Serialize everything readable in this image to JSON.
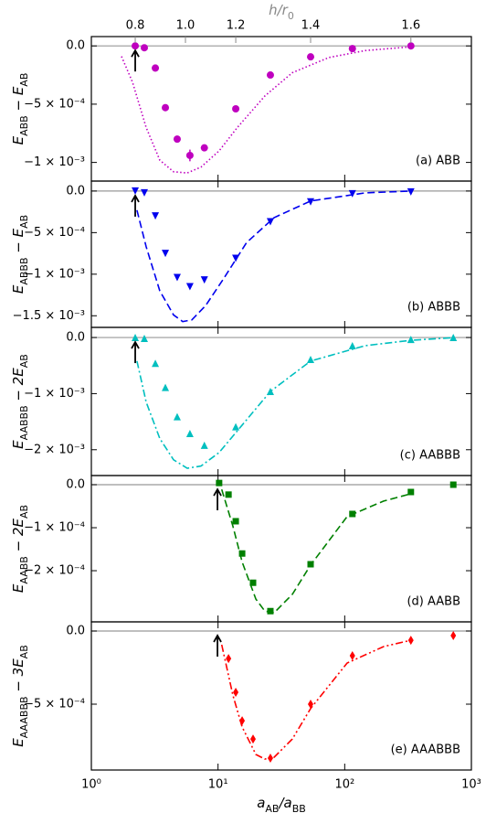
{
  "chart_data": {
    "type": "scatter",
    "xscale": "log",
    "xlabel": [
      "a",
      "AB",
      "/a",
      "BB"
    ],
    "xlim": [
      1,
      1000
    ],
    "xticks": [
      {
        "value": 1,
        "label": "10⁰"
      },
      {
        "value": 10,
        "label": "10¹"
      },
      {
        "value": 100,
        "label": "10²"
      },
      {
        "value": 1000,
        "label": "10³"
      }
    ],
    "x2label": [
      "h/r",
      "0"
    ],
    "x2ticks": [
      0.8,
      {
        "value": 1,
        "label": "1.0"
      },
      1.2,
      1.4,
      1.6
    ],
    "x2_at_x": [
      2.22,
      5.53,
      13.8,
      53.8,
      333
    ],
    "panels": [
      {
        "label": "(a) ABB",
        "color": "#bf00bf",
        "marker": "circle",
        "linestyle": "dotted",
        "ylabel": [
          "E",
          "ABB",
          " − E",
          "AB"
        ],
        "ylim": [
          -0.00116,
          8e-05
        ],
        "yticks": [
          {
            "value": 0,
            "label": "0.0"
          },
          {
            "value": -0.0005,
            "label": "−5 × 10⁻⁴"
          },
          {
            "value": -0.001,
            "label": "−1 × 10⁻³"
          }
        ],
        "x": [
          2.22,
          2.62,
          3.2,
          3.84,
          4.76,
          6.0,
          7.8,
          13.8,
          25.9,
          53.8,
          115,
          333
        ],
        "values": [
          0,
          -1.6e-05,
          -0.00019,
          -0.00053,
          -0.0008,
          -0.00094,
          -0.000875,
          -0.00054,
          -0.00025,
          -9.4e-05,
          -2.3e-05,
          0
        ],
        "errors": [
          0,
          0,
          3e-05,
          3e-05,
          3e-05,
          5e-05,
          2e-05,
          1e-05,
          1e-05,
          1e-05,
          0,
          0
        ],
        "curve_x": [
          1.73,
          2.11,
          2.71,
          3.47,
          4.46,
          5.72,
          7.33,
          10.2,
          14.2,
          23.4,
          38.6,
          75,
          145,
          333
        ],
        "curve_y": [
          -9e-05,
          -0.00031,
          -0.0007,
          -0.00098,
          -0.00108,
          -0.00109,
          -0.00104,
          -0.0009,
          -0.0007,
          -0.00043,
          -0.00023,
          -0.0001,
          -4e-05,
          -8e-06
        ],
        "arrow_x": 2.22
      },
      {
        "label": "(b) ABBB",
        "color": "#0000ee",
        "marker": "triangle-down",
        "linestyle": "dashed",
        "ylabel": [
          "E",
          "ABBB",
          " − E",
          "AB"
        ],
        "ylim": [
          -0.00164,
          0.00012
        ],
        "yticks": [
          {
            "value": 0,
            "label": "0.0"
          },
          {
            "value": -0.0005,
            "label": "−5 × 10⁻⁴"
          },
          {
            "value": -0.001,
            "label": "−1 × 10⁻³"
          },
          {
            "value": -0.0015,
            "label": "−1.5 × 10⁻³"
          }
        ],
        "x": [
          2.22,
          2.62,
          3.2,
          3.84,
          4.76,
          6.0,
          7.8,
          13.8,
          25.9,
          53.8,
          115,
          333
        ],
        "values": [
          0,
          -2.2e-05,
          -0.0003,
          -0.00075,
          -0.00104,
          -0.00115,
          -0.00107,
          -0.00081,
          -0.00037,
          -0.00013,
          -3.3e-05,
          -1.1e-05
        ],
        "curve_x": [
          2.29,
          2.71,
          3.47,
          4.46,
          5.26,
          6.21,
          7.96,
          11.1,
          16.8,
          27.7,
          53.8,
          145,
          333
        ],
        "curve_y": [
          -0.00023,
          -0.00067,
          -0.0012,
          -0.00149,
          -0.00157,
          -0.00155,
          -0.00138,
          -0.00105,
          -0.00062,
          -0.00032,
          -0.00012,
          -2.2e-05,
          0
        ],
        "arrow_x": 2.22
      },
      {
        "label": "(c) AABBB",
        "color": "#00bfbf",
        "marker": "triangle-up",
        "linestyle": "dashdot",
        "ylabel": [
          "E",
          "AABBB",
          " − 2E",
          "AB"
        ],
        "ylim": [
          -0.00246,
          0.00018
        ],
        "yticks": [
          {
            "value": 0,
            "label": "0.0"
          },
          {
            "value": -0.001,
            "label": "−1 × 10⁻³"
          },
          {
            "value": -0.002,
            "label": "−2 × 10⁻³"
          }
        ],
        "x": [
          2.22,
          2.62,
          3.2,
          3.84,
          4.76,
          6.0,
          7.8,
          13.8,
          25.9,
          53.8,
          115,
          333,
          720
        ],
        "values": [
          0,
          -1.6e-05,
          -0.00046,
          -0.00089,
          -0.00141,
          -0.00171,
          -0.00192,
          -0.00159,
          -0.00096,
          -0.00039,
          -0.000146,
          -3.3e-05,
          0
        ],
        "curve_x": [
          2.29,
          2.71,
          3.47,
          4.46,
          5.72,
          7.33,
          10.2,
          15.5,
          25.9,
          53.8,
          145,
          333,
          764
        ],
        "curve_y": [
          -0.00042,
          -0.00115,
          -0.0018,
          -0.00218,
          -0.00233,
          -0.00229,
          -0.00205,
          -0.00156,
          -0.00096,
          -0.00042,
          -0.000146,
          -4.9e-05,
          0
        ],
        "arrow_x": 2.22
      },
      {
        "label": "(d) AABB",
        "color": "#008000",
        "marker": "square",
        "linestyle": "dashed",
        "ylabel": [
          "E",
          "AABB",
          " − 2E",
          "AB"
        ],
        "ylim": [
          -0.000319,
          2.13e-05
        ],
        "yticks": [
          {
            "value": 0,
            "label": "0.0"
          },
          {
            "value": -0.0001,
            "label": "−1 × 10⁻⁴"
          },
          {
            "value": -0.0002,
            "label": "−2 × 10⁻⁴"
          }
        ],
        "x": [
          10.2,
          12.1,
          13.8,
          15.5,
          18.9,
          25.9,
          53.8,
          115,
          333,
          720
        ],
        "values": [
          4e-06,
          -2.3e-05,
          -8.5e-05,
          -0.00016,
          -0.000228,
          -0.000294,
          -0.000185,
          -6.8e-05,
          -1.7e-05,
          0
        ],
        "curve_x": [
          10.7,
          13.1,
          15.5,
          19.9,
          23.4,
          27.7,
          38.6,
          53.8,
          104.5,
          203,
          333
        ],
        "curve_y": [
          -1.1e-05,
          -9.6e-05,
          -0.00018,
          -0.000266,
          -0.000294,
          -0.000298,
          -0.000255,
          -0.000187,
          -7.4e-05,
          -3.8e-05,
          -2.1e-05
        ],
        "arrow_x": 9.9
      },
      {
        "label": "(e) AAABBB",
        "color": "#ff0000",
        "marker": "diamond",
        "linestyle": "dashdotdot",
        "ylabel": [
          "E",
          "AAABBB",
          " − 3E",
          "AB"
        ],
        "ylim": [
          -0.00095,
          6.25e-05
        ],
        "yticks": [
          {
            "value": 0,
            "label": "0.0"
          },
          {
            "value": -0.0005,
            "label": "−5 × 10⁻⁴"
          }
        ],
        "x": [
          12.1,
          13.8,
          15.5,
          18.9,
          25.9,
          53.8,
          115,
          333,
          720
        ],
        "values": [
          -0.000188,
          -0.000419,
          -0.000613,
          -0.000738,
          -0.000869,
          -0.0005,
          -0.000169,
          -6.3e-05,
          -3.1e-05
        ],
        "curve_x": [
          10.7,
          13.1,
          15.5,
          19.9,
          23.4,
          27.7,
          38.6,
          53.8,
          104.5,
          203,
          333
        ],
        "curve_y": [
          -9.4e-05,
          -0.000438,
          -0.000656,
          -0.000844,
          -0.000875,
          -0.000863,
          -0.000738,
          -0.00053,
          -0.000219,
          -0.000106,
          -6.3e-05
        ],
        "arrow_x": 9.9
      }
    ]
  }
}
